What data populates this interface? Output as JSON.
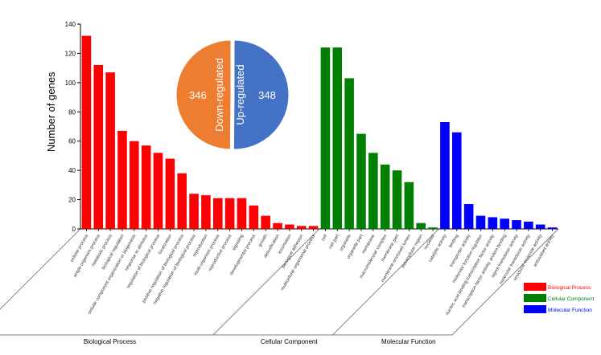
{
  "chart_data": {
    "type": "bar",
    "ylabel": "Number of genes",
    "ylim": [
      0,
      140
    ],
    "yticks": [
      0,
      20,
      40,
      60,
      80,
      100,
      120,
      140
    ],
    "grid": false,
    "legend_position": "bottom-right",
    "colors": {
      "Biological Process": "#ff0000",
      "Cellular Component": "#008000",
      "Molecular Function": "#0000ff"
    },
    "categories": [
      {
        "label": "cellular process",
        "value": 132,
        "group": "Biological Process"
      },
      {
        "label": "single-organism process",
        "value": 112,
        "group": "Biological Process"
      },
      {
        "label": "metabolic process",
        "value": 107,
        "group": "Biological Process"
      },
      {
        "label": "biological regulation",
        "value": 67,
        "group": "Biological Process"
      },
      {
        "label": "cellular component organization or biogenesis",
        "value": 60,
        "group": "Biological Process"
      },
      {
        "label": "response to stimulus",
        "value": 57,
        "group": "Biological Process"
      },
      {
        "label": "regulation of biological process",
        "value": 52,
        "group": "Biological Process"
      },
      {
        "label": "localization",
        "value": 48,
        "group": "Biological Process"
      },
      {
        "label": "positive regulation of biological process",
        "value": 38,
        "group": "Biological Process"
      },
      {
        "label": "negative regulation of biological process",
        "value": 24,
        "group": "Biological Process"
      },
      {
        "label": "reproduction",
        "value": 23,
        "group": "Biological Process"
      },
      {
        "label": "multi-organism process",
        "value": 21,
        "group": "Biological Process"
      },
      {
        "label": "reproductive process",
        "value": 21,
        "group": "Biological Process"
      },
      {
        "label": "signaling",
        "value": 21,
        "group": "Biological Process"
      },
      {
        "label": "developmental process",
        "value": 16,
        "group": "Biological Process"
      },
      {
        "label": "growth",
        "value": 9,
        "group": "Biological Process"
      },
      {
        "label": "detoxification",
        "value": 4,
        "group": "Biological Process"
      },
      {
        "label": "locomotion",
        "value": 3,
        "group": "Biological Process"
      },
      {
        "label": "biological adhesion",
        "value": 2,
        "group": "Biological Process"
      },
      {
        "label": "multicellular organismal process",
        "value": 2,
        "group": "Biological Process"
      },
      {
        "label": "cell",
        "value": 124,
        "group": "Cellular Component"
      },
      {
        "label": "cell part",
        "value": 124,
        "group": "Cellular Component"
      },
      {
        "label": "organelle",
        "value": 103,
        "group": "Cellular Component"
      },
      {
        "label": "organelle part",
        "value": 65,
        "group": "Cellular Component"
      },
      {
        "label": "membrane",
        "value": 52,
        "group": "Cellular Component"
      },
      {
        "label": "macromolecular complex",
        "value": 44,
        "group": "Cellular Component"
      },
      {
        "label": "membrane part",
        "value": 40,
        "group": "Cellular Component"
      },
      {
        "label": "membrane-enclosed lumen",
        "value": 32,
        "group": "Cellular Component"
      },
      {
        "label": "extracellular region",
        "value": 4,
        "group": "Cellular Component"
      },
      {
        "label": "nucleoid",
        "value": 1,
        "group": "Cellular Component"
      },
      {
        "label": "catalytic activity",
        "value": 73,
        "group": "Molecular Function"
      },
      {
        "label": "binding",
        "value": 66,
        "group": "Molecular Function"
      },
      {
        "label": "transporter activity",
        "value": 17,
        "group": "Molecular Function"
      },
      {
        "label": "molecular function regulator",
        "value": 9,
        "group": "Molecular Function"
      },
      {
        "label": "nucleic acid binding transcription factor activity",
        "value": 8,
        "group": "Molecular Function"
      },
      {
        "label": "transcription factor activity, protein binding",
        "value": 7,
        "group": "Molecular Function"
      },
      {
        "label": "signal transducer activity",
        "value": 6,
        "group": "Molecular Function"
      },
      {
        "label": "molecular transducer activity",
        "value": 5,
        "group": "Molecular Function"
      },
      {
        "label": "structural molecule activity",
        "value": 3,
        "group": "Molecular Function"
      },
      {
        "label": "antioxidant activity",
        "value": 1,
        "group": "Molecular Function"
      }
    ],
    "groups": [
      "Biological Process",
      "Cellular Component",
      "Molecular Function"
    ],
    "legend": [
      "Biological Process",
      "Cellular Component",
      "Molecular Function"
    ],
    "inset_pie": {
      "type": "pie",
      "slices": [
        {
          "label": "Down-regulated",
          "value": 346,
          "color": "#ed7d31"
        },
        {
          "label": "Up-regulated",
          "value": 348,
          "color": "#4472c4"
        }
      ]
    }
  }
}
